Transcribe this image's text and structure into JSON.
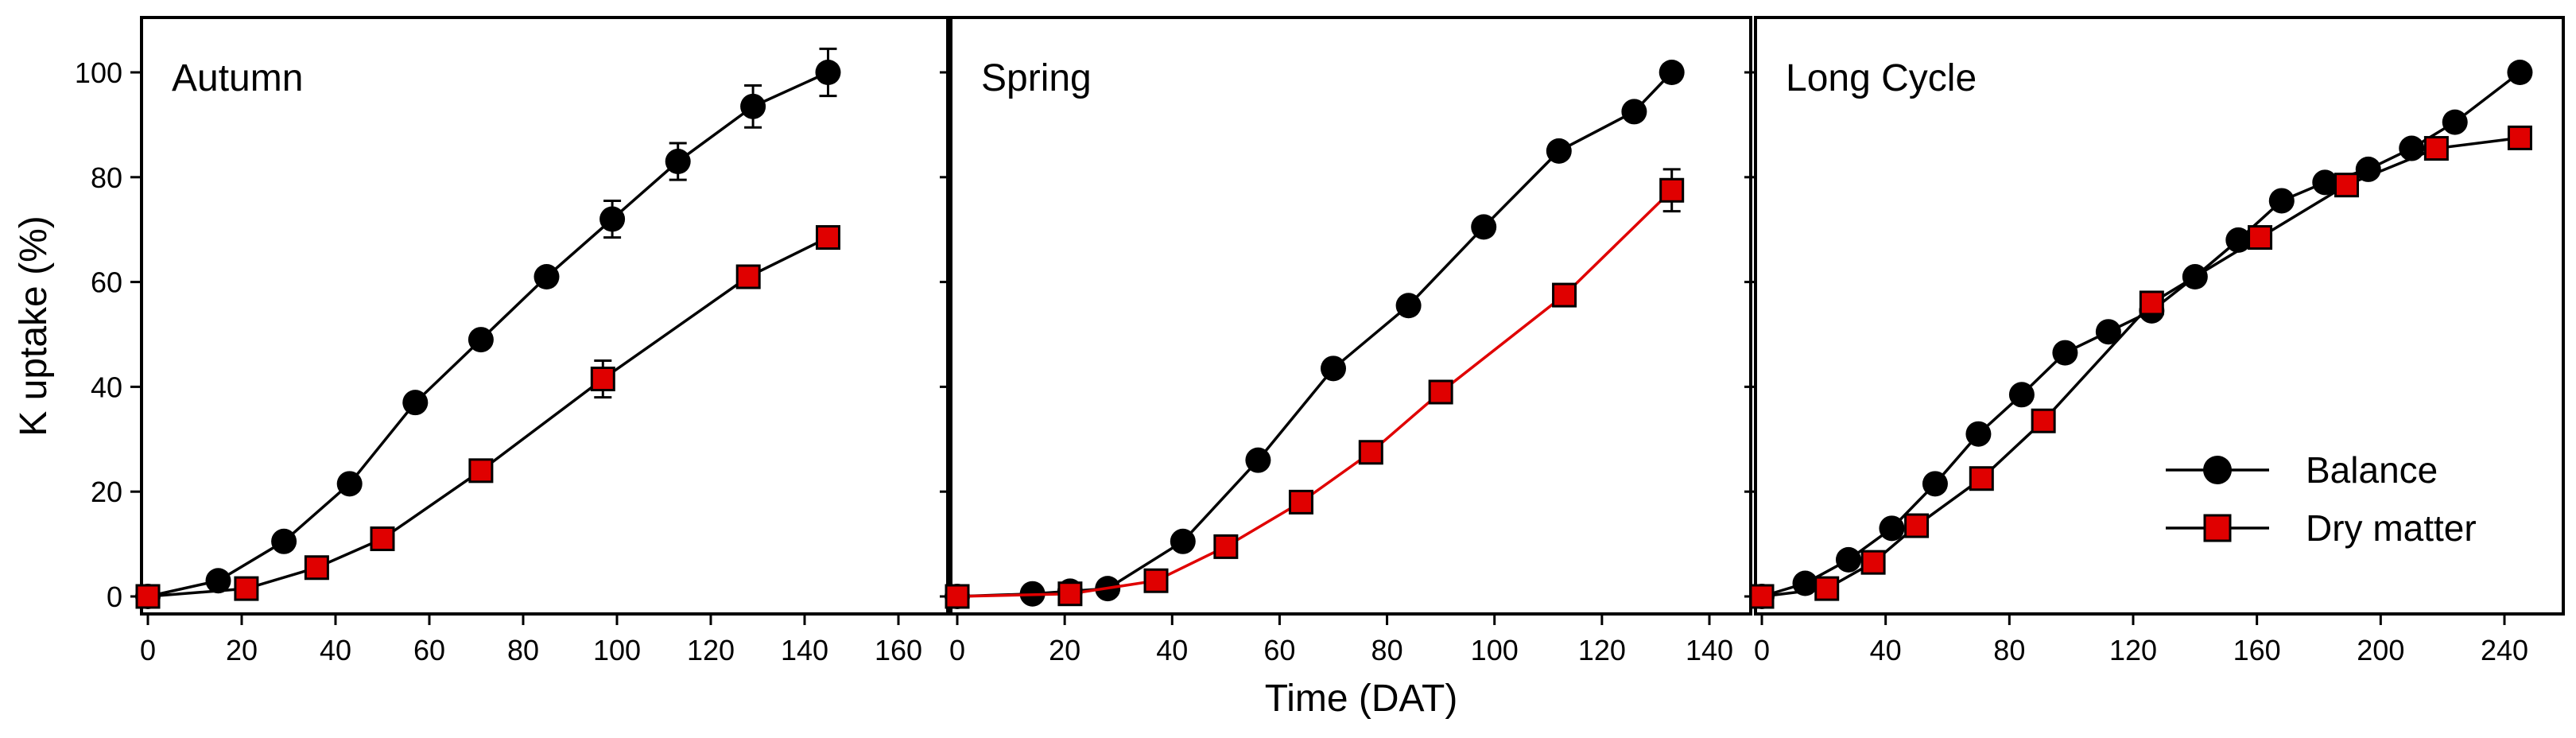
{
  "chart_data": {
    "type": "line",
    "shared_ylabel": "K uptake (%)",
    "shared_xlabel": "Time (DAT)",
    "ylim": [
      0,
      110
    ],
    "yticks": [
      0,
      20,
      40,
      60,
      80,
      100
    ],
    "colors": {
      "balance": "#000000",
      "dry_matter": "#e00000",
      "line_default": "#000000",
      "spring_dry_line": "#e00000"
    },
    "legend": {
      "placement": "bottom-right of Long Cycle panel",
      "entries": [
        "Balance",
        "Dry matter"
      ]
    },
    "panels": [
      {
        "title": "Autumn",
        "xlim": [
          0,
          165
        ],
        "xticks": [
          0,
          20,
          40,
          60,
          80,
          100,
          120,
          140,
          160
        ],
        "series": [
          {
            "name": "Balance",
            "marker": "circle",
            "x": [
              0,
              15,
              29,
              43,
              57,
              71,
              85,
              99,
              113,
              129,
              145
            ],
            "y": [
              0,
              3,
              10.5,
              21.5,
              37,
              49,
              61,
              72,
              83,
              93.5,
              100
            ],
            "err": [
              0,
              0,
              0,
              0,
              0,
              0,
              0,
              3.5,
              3.5,
              4,
              4.5
            ]
          },
          {
            "name": "Dry matter",
            "marker": "square",
            "x": [
              0,
              21,
              36,
              50,
              71,
              97,
              128,
              145
            ],
            "y": [
              0,
              1.5,
              5.5,
              11,
              24,
              41.5,
              61,
              68.5
            ],
            "err": [
              0,
              0,
              0,
              0,
              0,
              3.5,
              0,
              0
            ]
          }
        ]
      },
      {
        "title": "Spring",
        "xlim": [
          0,
          150
        ],
        "xticks": [
          0,
          20,
          40,
          60,
          80,
          100,
          120,
          140
        ],
        "series": [
          {
            "name": "Balance",
            "marker": "circle",
            "x": [
              0,
              14,
              21,
              28,
              42,
              56,
              70,
              84,
              98,
              112,
              126,
              133
            ],
            "y": [
              0,
              0.5,
              1,
              1.5,
              10.5,
              26,
              43.5,
              55.5,
              70.5,
              85,
              92.5,
              100
            ],
            "err": [
              0,
              0,
              0,
              0,
              0,
              0,
              0,
              0,
              0,
              0,
              0,
              0
            ]
          },
          {
            "name": "Dry matter",
            "marker": "square",
            "x": [
              0,
              21,
              37,
              50,
              64,
              77,
              90,
              113,
              133
            ],
            "y": [
              0,
              0.5,
              3,
              9.5,
              18,
              27.5,
              39,
              57.5,
              77.5
            ],
            "err": [
              0,
              0,
              0,
              0,
              0,
              0,
              0,
              0,
              4
            ]
          }
        ]
      },
      {
        "title": "Long Cycle",
        "xlim": [
          0,
          260
        ],
        "xticks": [
          0,
          40,
          80,
          120,
          160,
          200,
          240
        ],
        "series": [
          {
            "name": "Balance",
            "marker": "circle",
            "x": [
              0,
              14,
              28,
              42,
              56,
              70,
              84,
              98,
              112,
              126,
              140,
              154,
              168,
              182,
              196,
              210,
              224,
              245
            ],
            "y": [
              0,
              2.5,
              7,
              13,
              21.5,
              31,
              38.5,
              46.5,
              50.5,
              54.5,
              61,
              68,
              75.5,
              79,
              81.5,
              85.5,
              90.5,
              100
            ],
            "err": [
              0,
              0,
              0,
              0,
              0,
              0,
              0,
              0,
              0,
              0,
              0,
              0,
              0,
              0,
              0,
              0,
              0,
              0
            ]
          },
          {
            "name": "Dry matter",
            "marker": "square",
            "x": [
              0,
              21,
              36,
              50,
              71,
              91,
              126,
              161,
              189,
              218,
              245
            ],
            "y": [
              0,
              1.5,
              6.5,
              13.5,
              22.5,
              33.5,
              56,
              68.5,
              78.5,
              85.5,
              87.5
            ],
            "err": [
              0,
              0,
              0,
              0,
              0,
              0,
              0,
              0,
              0,
              0,
              0
            ]
          }
        ]
      }
    ]
  }
}
